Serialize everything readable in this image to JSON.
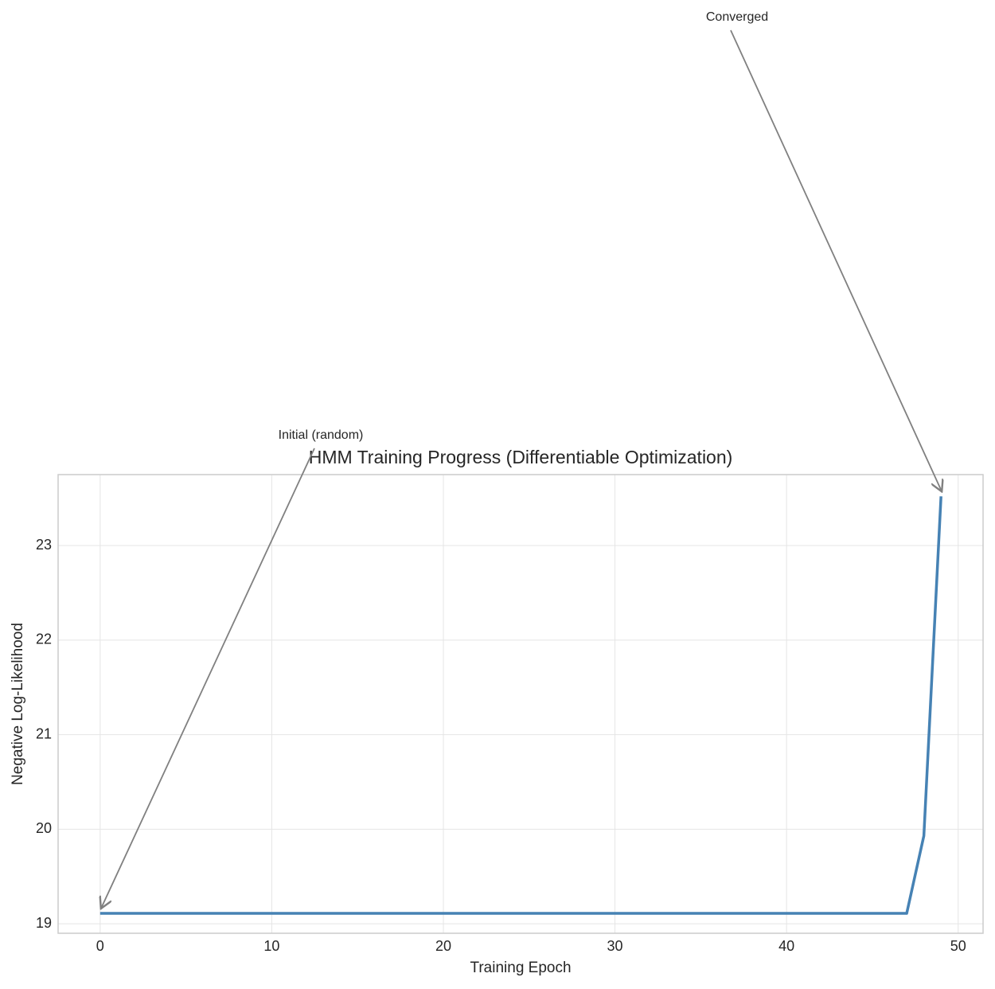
{
  "chart_data": {
    "type": "line",
    "title": "HMM Training Progress (Differentiable Optimization)",
    "x_label": "Training Epoch",
    "y_label": "Negative Log-Likelihood",
    "x": [
      0,
      1,
      2,
      3,
      4,
      5,
      6,
      7,
      8,
      9,
      10,
      11,
      12,
      13,
      14,
      15,
      16,
      17,
      18,
      19,
      20,
      21,
      22,
      23,
      24,
      25,
      26,
      27,
      28,
      29,
      30,
      31,
      32,
      33,
      34,
      35,
      36,
      37,
      38,
      39,
      40,
      41,
      42,
      43,
      44,
      45,
      46,
      47,
      48,
      49
    ],
    "values": [
      19.11,
      19.11,
      19.11,
      19.11,
      19.11,
      19.11,
      19.11,
      19.11,
      19.11,
      19.11,
      19.11,
      19.11,
      19.11,
      19.11,
      19.11,
      19.11,
      19.11,
      19.11,
      19.11,
      19.11,
      19.11,
      19.11,
      19.11,
      19.11,
      19.11,
      19.11,
      19.11,
      19.11,
      19.11,
      19.11,
      19.11,
      19.11,
      19.11,
      19.11,
      19.11,
      19.11,
      19.11,
      19.11,
      19.11,
      19.11,
      19.11,
      19.11,
      19.11,
      19.11,
      19.11,
      19.11,
      19.11,
      19.11,
      19.93,
      23.52
    ],
    "color": "#4682b4",
    "xlim": [
      -2.45,
      51.45
    ],
    "ylim": [
      18.9,
      23.75
    ],
    "xticks": [
      0,
      10,
      20,
      30,
      40,
      50
    ],
    "yticks": [
      19,
      20,
      21,
      22,
      23
    ],
    "grid": true,
    "annotations": [
      {
        "text": "Initial (random)",
        "x": 0,
        "y": 19.11
      },
      {
        "text": "Converged",
        "x": 49,
        "y": 23.52
      }
    ]
  }
}
